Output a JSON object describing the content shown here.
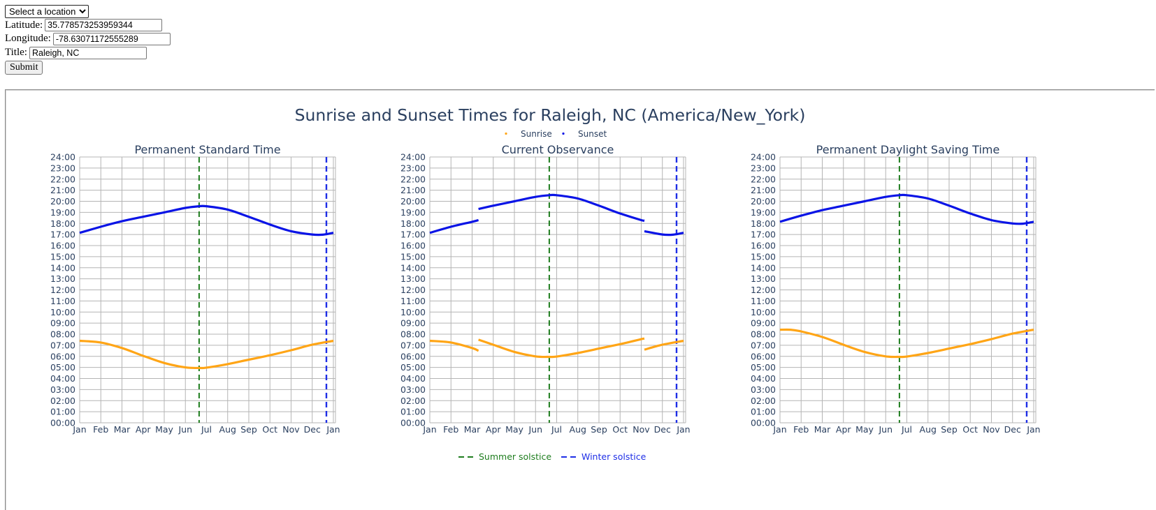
{
  "form": {
    "location_select": "Select a location",
    "latitude_label": "Latitude:",
    "latitude_value": "35.778573253959344",
    "longitude_label": "Longitude:",
    "longitude_value": "-78.63071172555289",
    "title_label": "Title:",
    "title_value": "Raleigh, NC",
    "submit_label": "Submit"
  },
  "colors": {
    "sunrise": "#FFA516",
    "sunset": "#0A14E6",
    "summer": "#1E7D1E",
    "winter": "#1E2EE6",
    "text": "#2A3F5F",
    "grid": "#B4B4B4"
  },
  "chart_data": {
    "type": "line",
    "title": "Sunrise and Sunset Times for Raleigh, NC (America/New_York)",
    "legend": {
      "position": "top-center",
      "items": [
        "Sunrise",
        "Sunset"
      ]
    },
    "bottom_legend": {
      "position": "bottom-center",
      "items": [
        "Summer solstice",
        "Winter solstice"
      ]
    },
    "x_ticks": [
      "Jan",
      "Feb",
      "Mar",
      "Apr",
      "May",
      "Jun",
      "Jul",
      "Aug",
      "Sep",
      "Oct",
      "Nov",
      "Dec",
      "Jan"
    ],
    "y_ticks": [
      "00:00",
      "01:00",
      "02:00",
      "03:00",
      "04:00",
      "05:00",
      "06:00",
      "07:00",
      "08:00",
      "09:00",
      "10:00",
      "11:00",
      "12:00",
      "13:00",
      "14:00",
      "15:00",
      "16:00",
      "17:00",
      "18:00",
      "19:00",
      "20:00",
      "21:00",
      "22:00",
      "23:00",
      "24:00"
    ],
    "y_range": [
      0,
      24
    ],
    "x_range_months": [
      0,
      12.1
    ],
    "grid": true,
    "summer_solstice_month": 5.65,
    "winter_solstice_month": 11.67,
    "panels": [
      {
        "subtitle": "Permanent Standard Time",
        "series": [
          {
            "name": "Sunrise",
            "segments": [
              {
                "x": [
                  0,
                  1,
                  2,
                  3,
                  4,
                  5,
                  5.65,
                  6,
                  7,
                  8,
                  9,
                  10,
                  11,
                  12
                ],
                "y": [
                  7.4,
                  7.25,
                  6.75,
                  6.05,
                  5.4,
                  5.0,
                  4.95,
                  4.98,
                  5.3,
                  5.7,
                  6.1,
                  6.55,
                  7.05,
                  7.4
                ]
              }
            ]
          },
          {
            "name": "Sunset",
            "segments": [
              {
                "x": [
                  0,
                  1,
                  2,
                  3,
                  4,
                  5,
                  5.65,
                  6,
                  7,
                  8,
                  9,
                  10,
                  11,
                  11.5,
                  12
                ],
                "y": [
                  17.15,
                  17.7,
                  18.2,
                  18.6,
                  19.0,
                  19.4,
                  19.55,
                  19.55,
                  19.25,
                  18.6,
                  17.9,
                  17.3,
                  17.0,
                  16.98,
                  17.15
                ]
              }
            ]
          }
        ]
      },
      {
        "subtitle": "Current Observance",
        "series": [
          {
            "name": "Sunrise",
            "segments": [
              {
                "x": [
                  0,
                  1,
                  2,
                  2.3
                ],
                "y": [
                  7.4,
                  7.25,
                  6.75,
                  6.5
                ]
              },
              {
                "x": [
                  2.3,
                  3,
                  4,
                  5,
                  5.65,
                  6,
                  7,
                  8,
                  9,
                  10,
                  10.15
                ],
                "y": [
                  7.5,
                  7.05,
                  6.4,
                  6.0,
                  5.95,
                  5.98,
                  6.3,
                  6.7,
                  7.1,
                  7.55,
                  7.6
                ]
              },
              {
                "x": [
                  10.15,
                  11,
                  12
                ],
                "y": [
                  6.6,
                  7.05,
                  7.4
                ]
              }
            ]
          },
          {
            "name": "Sunset",
            "segments": [
              {
                "x": [
                  0,
                  1,
                  2,
                  2.3
                ],
                "y": [
                  17.15,
                  17.7,
                  18.15,
                  18.3
                ]
              },
              {
                "x": [
                  2.3,
                  3,
                  4,
                  5,
                  5.65,
                  6,
                  7,
                  8,
                  9,
                  10,
                  10.15
                ],
                "y": [
                  19.3,
                  19.6,
                  20.0,
                  20.4,
                  20.55,
                  20.55,
                  20.25,
                  19.6,
                  18.9,
                  18.3,
                  18.25
                ]
              },
              {
                "x": [
                  10.15,
                  11,
                  11.5,
                  12
                ],
                "y": [
                  17.3,
                  17.0,
                  16.98,
                  17.15
                ]
              }
            ]
          }
        ]
      },
      {
        "subtitle": "Permanent Daylight Saving Time",
        "series": [
          {
            "name": "Sunrise",
            "segments": [
              {
                "x": [
                  0,
                  0.5,
                  1,
                  2,
                  3,
                  4,
                  5,
                  5.65,
                  6,
                  7,
                  8,
                  9,
                  10,
                  11,
                  12
                ],
                "y": [
                  8.4,
                  8.4,
                  8.25,
                  7.75,
                  7.05,
                  6.4,
                  6.0,
                  5.95,
                  5.98,
                  6.3,
                  6.7,
                  7.1,
                  7.55,
                  8.05,
                  8.4
                ]
              }
            ]
          },
          {
            "name": "Sunset",
            "segments": [
              {
                "x": [
                  0,
                  1,
                  2,
                  3,
                  4,
                  5,
                  5.65,
                  6,
                  7,
                  8,
                  9,
                  10,
                  11,
                  11.5,
                  12
                ],
                "y": [
                  18.15,
                  18.7,
                  19.2,
                  19.6,
                  20.0,
                  20.4,
                  20.55,
                  20.55,
                  20.25,
                  19.6,
                  18.9,
                  18.3,
                  18.0,
                  17.98,
                  18.15
                ]
              }
            ]
          }
        ]
      }
    ]
  }
}
